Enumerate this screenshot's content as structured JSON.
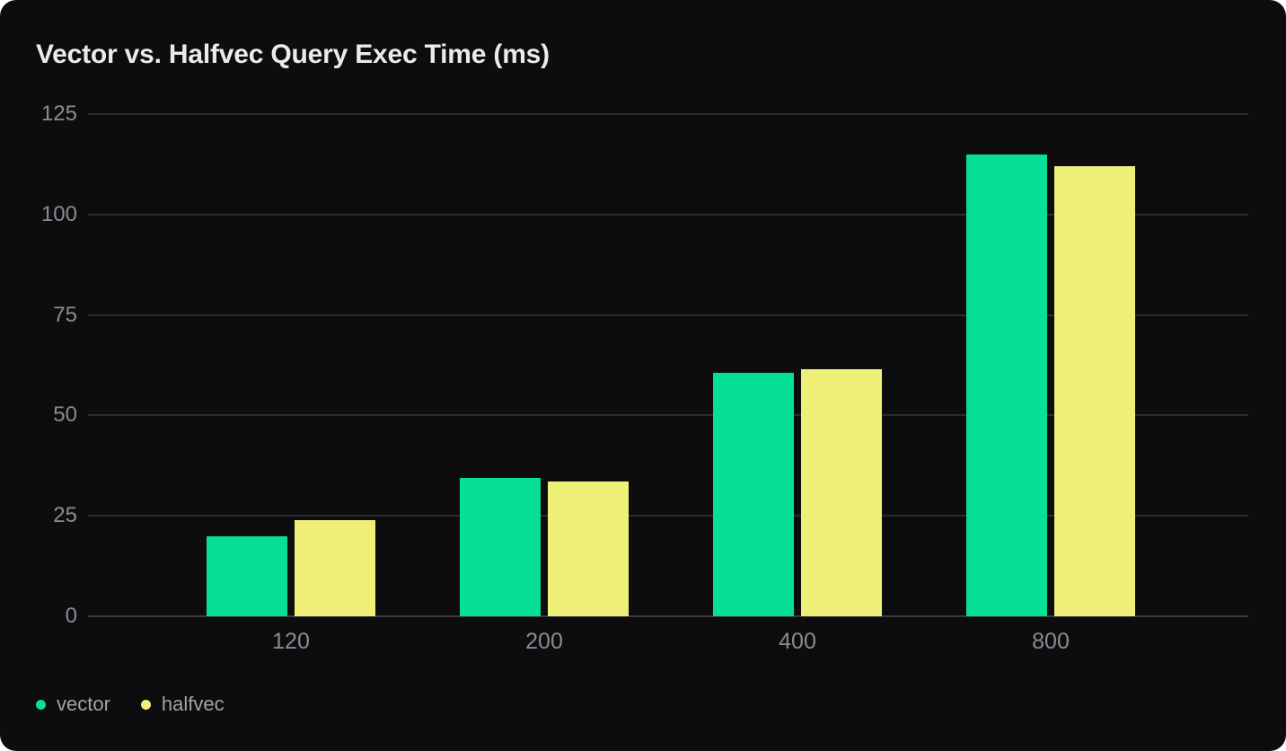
{
  "title": "Vector vs. Halfvec Query Exec Time (ms)",
  "colors": {
    "page_bg": "#ffffff",
    "card_bg": "#0d0d0f",
    "grid": "#2c2c2f",
    "axis": "#3b3b3f",
    "title_text": "#ebebeb",
    "tick_text": "#8b8b90",
    "legend_text": "#a3a3a8",
    "vector": "#05e096",
    "halfvec": "#eef077"
  },
  "chart_data": {
    "type": "bar",
    "title": "Vector vs. Halfvec Query Exec Time (ms)",
    "categories": [
      "120",
      "200",
      "400",
      "800"
    ],
    "series": [
      {
        "name": "vector",
        "color": "#05e096",
        "values": [
          20,
          34.5,
          60.5,
          115
        ]
      },
      {
        "name": "halfvec",
        "color": "#eef077",
        "values": [
          24,
          33.5,
          61.5,
          112
        ]
      }
    ],
    "xlabel": "",
    "ylabel": "",
    "ylim": [
      0,
      125
    ],
    "yticks": [
      0,
      25,
      50,
      75,
      100,
      125
    ],
    "grid": true,
    "legend_position": "bottom-left",
    "legend": [
      "vector",
      "halfvec"
    ]
  }
}
